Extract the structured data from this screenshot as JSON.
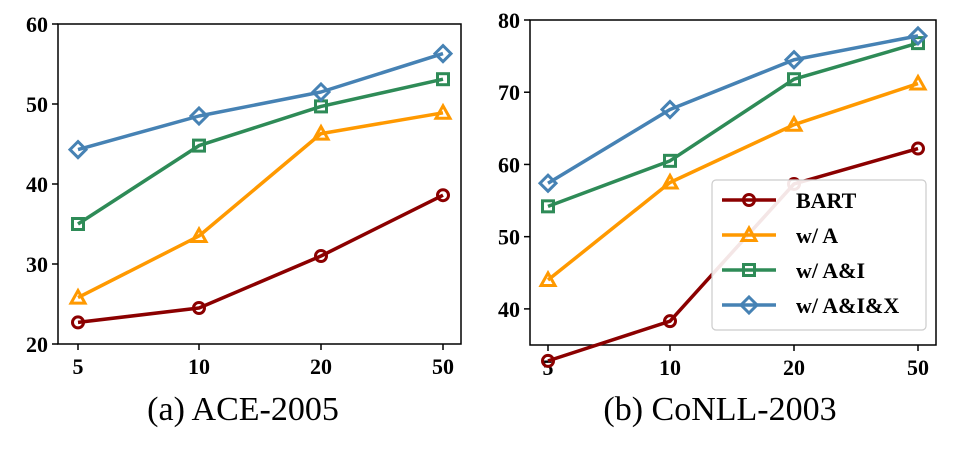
{
  "chart_data": [
    {
      "type": "line",
      "title": "(a) ACE-2005",
      "categories": [
        "5",
        "10",
        "20",
        "50"
      ],
      "ylim": [
        20,
        60
      ],
      "yticks": [
        20,
        30,
        40,
        50,
        60
      ],
      "series": [
        {
          "name": "BART",
          "values": [
            22.7,
            24.5,
            31.0,
            38.6
          ],
          "color": "#8b0000",
          "marker": "circle"
        },
        {
          "name": "w/ A",
          "values": [
            25.8,
            33.5,
            46.3,
            48.9
          ],
          "color": "#ff9900",
          "marker": "triangle"
        },
        {
          "name": "w/ A&I",
          "values": [
            35.0,
            44.8,
            49.7,
            53.1
          ],
          "color": "#2e8b57",
          "marker": "square"
        },
        {
          "name": "w/ A&I&X",
          "values": [
            44.3,
            48.5,
            51.5,
            56.3
          ],
          "color": "#4682b4",
          "marker": "diamond"
        }
      ]
    },
    {
      "type": "line",
      "title": "(b) CoNLL-2003",
      "categories": [
        "5",
        "10",
        "20",
        "50"
      ],
      "ylim": [
        35,
        80
      ],
      "yticks": [
        40,
        50,
        60,
        70,
        80
      ],
      "legend": "lower-right",
      "series": [
        {
          "name": "BART",
          "values": [
            32.8,
            38.3,
            57.3,
            62.2
          ],
          "color": "#8b0000",
          "marker": "circle"
        },
        {
          "name": "w/ A",
          "values": [
            44.0,
            57.5,
            65.5,
            71.2
          ],
          "color": "#ff9900",
          "marker": "triangle"
        },
        {
          "name": "w/ A&I",
          "values": [
            54.2,
            60.5,
            71.8,
            76.8
          ],
          "color": "#2e8b57",
          "marker": "square"
        },
        {
          "name": "w/ A&I&X",
          "values": [
            57.4,
            67.6,
            74.5,
            77.8
          ],
          "color": "#4682b4",
          "marker": "diamond"
        }
      ]
    }
  ]
}
